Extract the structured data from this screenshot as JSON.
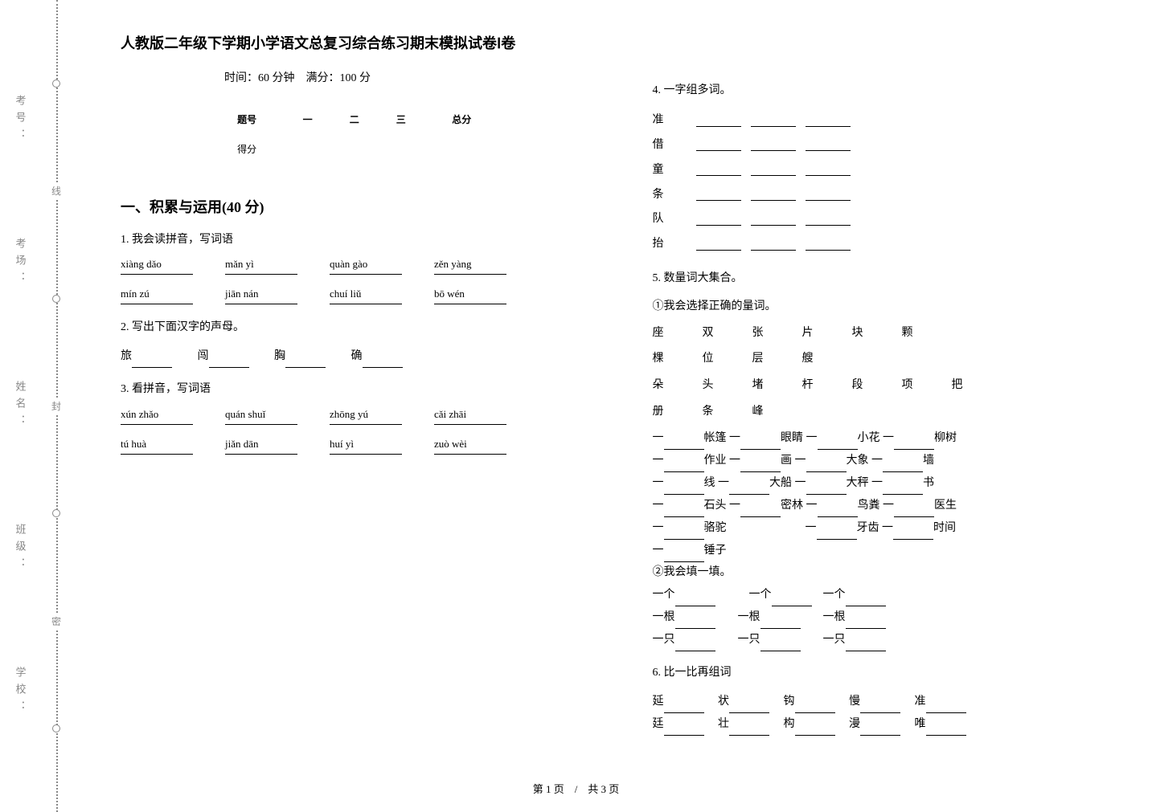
{
  "title": "人教版二年级下学期小学语文总复习综合练习期末模拟试卷Ⅰ卷",
  "subtitle": "时间：60 分钟　满分：100 分",
  "score_table": {
    "headers": [
      "题号",
      "一",
      "二",
      "三",
      "总分"
    ],
    "row_label": "得分"
  },
  "sidebar_labels": [
    "学校：",
    "班级：",
    "姓名：",
    "考场：",
    "考号："
  ],
  "cut_chars": [
    "密",
    "封",
    "线"
  ],
  "section1": {
    "title": "一、积累与运用(40 分)",
    "q1": {
      "label": "1. 我会读拼音，写词语",
      "row1": [
        "xiàng dǎo",
        "mǎn yì",
        "quàn gào",
        "zěn yàng"
      ],
      "row2": [
        "mín zú",
        "jiān nán",
        "chuí liǔ",
        "bō wén"
      ]
    },
    "q2": {
      "label": "2. 写出下面汉字的声母。",
      "chars": [
        "旅",
        "闯",
        "胸",
        "确"
      ]
    },
    "q3": {
      "label": "3. 看拼音，写词语",
      "row1": [
        "xún zhǎo",
        "quán shuǐ",
        "zhōng yú",
        "cǎi zhāi"
      ],
      "row2": [
        "tú huà",
        "jiǎn dān",
        "huí yì",
        "zuò wèi"
      ]
    },
    "q4": {
      "label": "4. 一字组多词。",
      "chars": [
        "准",
        "借",
        "童",
        "条",
        "队",
        "抬"
      ]
    },
    "q5": {
      "label": "5. 数量词大集合。",
      "sub1_label": "①我会选择正确的量词。",
      "words": [
        "座",
        "双",
        "张",
        "片",
        "块",
        "颗",
        "棵",
        "位",
        "层",
        "艘",
        "朵",
        "头",
        "堵",
        "杆",
        "段",
        "项",
        "把",
        "册",
        "条",
        "峰"
      ],
      "fill_items": [
        [
          "帐篷",
          "眼睛",
          "小花",
          "柳树"
        ],
        [
          "作业",
          "画",
          "大象",
          "墙"
        ],
        [
          "线",
          "大船",
          "大秤",
          "书"
        ],
        [
          "石头",
          "密林",
          "鸟粪",
          "医生"
        ],
        [
          "骆驼",
          "",
          "牙齿",
          "时间"
        ],
        [
          "锤子",
          "",
          "",
          ""
        ]
      ],
      "sub2_label": "②我会填一填。",
      "fill2": [
        [
          "一个",
          "一个",
          "一个"
        ],
        [
          "一根",
          "一根",
          "一根"
        ],
        [
          "一只",
          "一只",
          "一只"
        ]
      ]
    },
    "q6": {
      "label": "6. 比一比再组词",
      "pairs": [
        [
          "延",
          "状",
          "钩",
          "慢",
          "准"
        ],
        [
          "廷",
          "壮",
          "构",
          "漫",
          "唯"
        ]
      ]
    }
  },
  "footer": "第 1 页　/　共 3 页"
}
